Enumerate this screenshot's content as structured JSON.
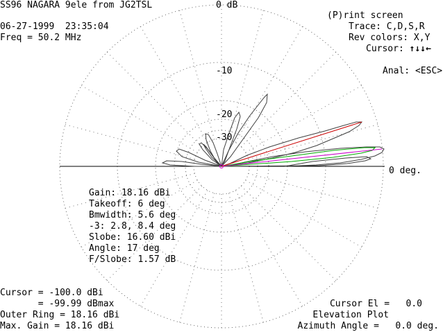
{
  "header": {
    "title": "SS96 NAGARA 9ele from JG2TSL",
    "date_time": "06-27-1999  23:35:04",
    "freq": "Freq = 50.2 MHz"
  },
  "plot": {
    "top_label": "0 dB",
    "ring_labels": [
      "-10",
      "-20",
      "-30"
    ],
    "right_label": "0 deg."
  },
  "menu": {
    "print": "(P)rint screen",
    "trace": "Trace: C,D,S,R",
    "rev_colors": "Rev colors: X,Y",
    "cursor": "Cursor: ",
    "cursor_arrows": "↑↓↓←",
    "anal": "Anal: <ESC>"
  },
  "stats": [
    "Gain: 18.16 dBi",
    "Takeoff: 6 deg",
    "Bmwidth: 5.6 deg",
    "-3: 2.8, 8.4 deg",
    "Slobe: 16.60 dBi",
    "Angle: 17 deg",
    "F/Slobe: 1.57 dB"
  ],
  "footer_left": {
    "cursor": "Cursor = -100.0 dBi",
    "cursor_max": "       = -99.99 dBmax",
    "outer_ring": "Outer Ring = 18.16 dBi",
    "max_gain": "Max. Gain = 18.16 dBi"
  },
  "footer_right": {
    "cursor_el": "Cursor El =   0.0",
    "plot_type": "Elevation Plot",
    "azimuth": "Azimuth Angle =   0.0 deg."
  },
  "colors": {
    "pattern": "#404040",
    "grid": "#606060",
    "cursor_line": "#cc0000",
    "green_trace": "#00aa00",
    "magenta_trace": "#cc00cc"
  }
}
